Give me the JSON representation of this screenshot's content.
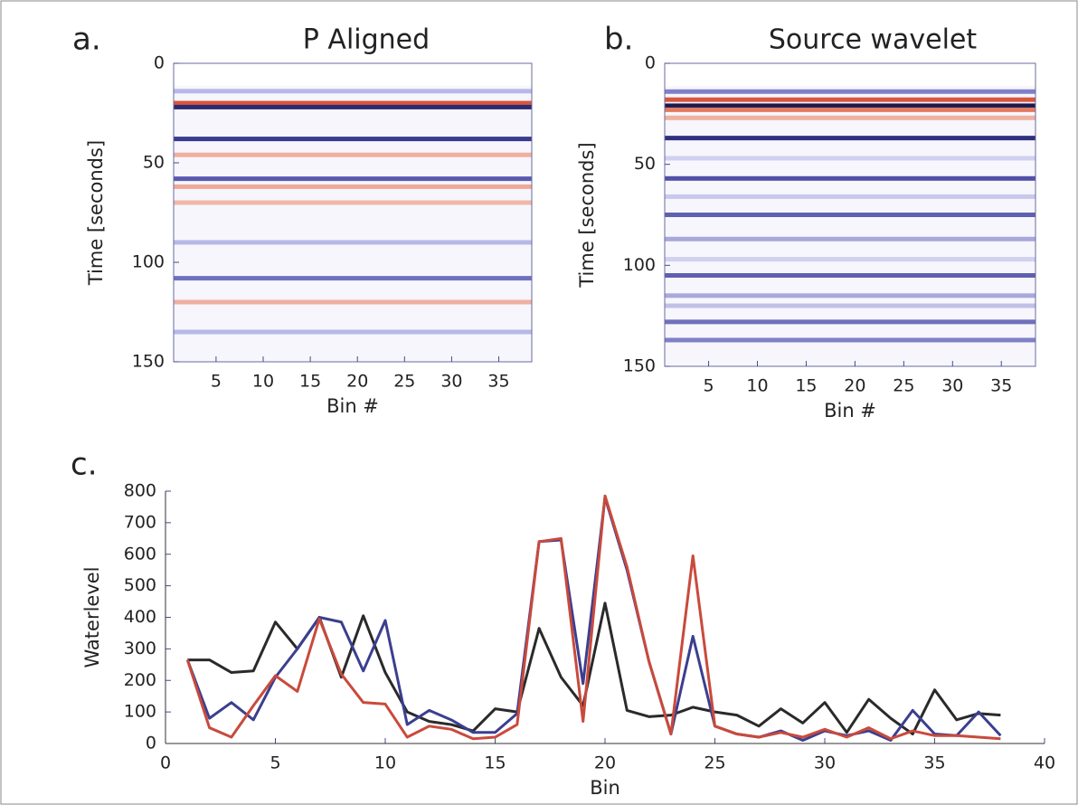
{
  "chart_data": [
    {
      "type": "heatmap",
      "panel": "a.",
      "title": "P Aligned",
      "xlabel": "Bin #",
      "ylabel": "Time [seconds]",
      "xlim": [
        0.5,
        38.5
      ],
      "xticks": [
        5,
        10,
        15,
        20,
        25,
        30,
        35
      ],
      "ylim": [
        0,
        150
      ],
      "yticks": [
        0,
        50,
        100,
        150
      ],
      "bands": {
        "times": [
          14,
          20,
          22,
          38,
          46,
          58,
          62,
          70,
          90,
          108,
          120,
          135
        ],
        "colors": [
          "#b8b8e8",
          "#d9563f",
          "#2b2b70",
          "#3a3a90",
          "#f0b0a0",
          "#5a5ab0",
          "#f0a898",
          "#f0b8a8",
          "#b8b8e8",
          "#7070c0",
          "#f0b0a0",
          "#b8b8e8"
        ]
      }
    },
    {
      "type": "heatmap",
      "panel": "b.",
      "title": "Source wavelet",
      "xlabel": "Bin #",
      "ylabel": "Time [seconds]",
      "xlim": [
        0.5,
        38.5
      ],
      "xticks": [
        5,
        10,
        15,
        20,
        25,
        30,
        35
      ],
      "ylim": [
        0,
        150
      ],
      "yticks": [
        0,
        50,
        100,
        150
      ],
      "bands": {
        "times": [
          14,
          18,
          21,
          23,
          27,
          37,
          47,
          57,
          66,
          75,
          87,
          97,
          105,
          115,
          120,
          128,
          137
        ],
        "colors": [
          "#8080c8",
          "#d9563f",
          "#1a1a50",
          "#e07a60",
          "#f0b0a0",
          "#303080",
          "#d0d0f0",
          "#5050a8",
          "#c8c8ec",
          "#6060b0",
          "#a8a8dc",
          "#d0d0f0",
          "#6060b0",
          "#a8a8dc",
          "#c0c0e8",
          "#7070bc",
          "#8080c8"
        ]
      }
    },
    {
      "type": "line",
      "panel": "c.",
      "xlabel": "Bin",
      "ylabel": "Waterlevel",
      "xlim": [
        0,
        40
      ],
      "xticks": [
        0,
        5,
        10,
        15,
        20,
        25,
        30,
        35,
        40
      ],
      "ylim": [
        0,
        800
      ],
      "yticks": [
        0,
        100,
        200,
        300,
        400,
        500,
        600,
        700,
        800
      ],
      "x": [
        1,
        2,
        3,
        4,
        5,
        6,
        7,
        8,
        9,
        10,
        11,
        12,
        13,
        14,
        15,
        16,
        17,
        18,
        19,
        20,
        21,
        22,
        23,
        24,
        25,
        26,
        27,
        28,
        29,
        30,
        31,
        32,
        33,
        34,
        35,
        36,
        37,
        38
      ],
      "series": [
        {
          "color": "#2a2a2a",
          "values": [
            265,
            265,
            225,
            230,
            385,
            300,
            400,
            210,
            405,
            225,
            100,
            70,
            60,
            40,
            110,
            100,
            365,
            210,
            120,
            445,
            105,
            85,
            90,
            115,
            100,
            90,
            55,
            110,
            65,
            130,
            35,
            140,
            80,
            30,
            170,
            75,
            95,
            90
          ]
        },
        {
          "color": "#3b3f8f",
          "values": [
            265,
            80,
            130,
            75,
            210,
            300,
            400,
            385,
            230,
            390,
            60,
            105,
            75,
            35,
            35,
            95,
            640,
            645,
            190,
            780,
            550,
            260,
            30,
            340,
            55,
            30,
            20,
            40,
            10,
            40,
            25,
            40,
            10,
            105,
            30,
            25,
            100,
            25
          ]
        },
        {
          "color": "#c94a3c",
          "values": [
            265,
            50,
            20,
            120,
            215,
            165,
            395,
            220,
            130,
            125,
            20,
            55,
            45,
            15,
            20,
            60,
            640,
            650,
            70,
            785,
            560,
            260,
            30,
            595,
            55,
            30,
            20,
            35,
            20,
            45,
            20,
            50,
            15,
            40,
            25,
            25,
            20,
            15
          ]
        }
      ]
    }
  ]
}
